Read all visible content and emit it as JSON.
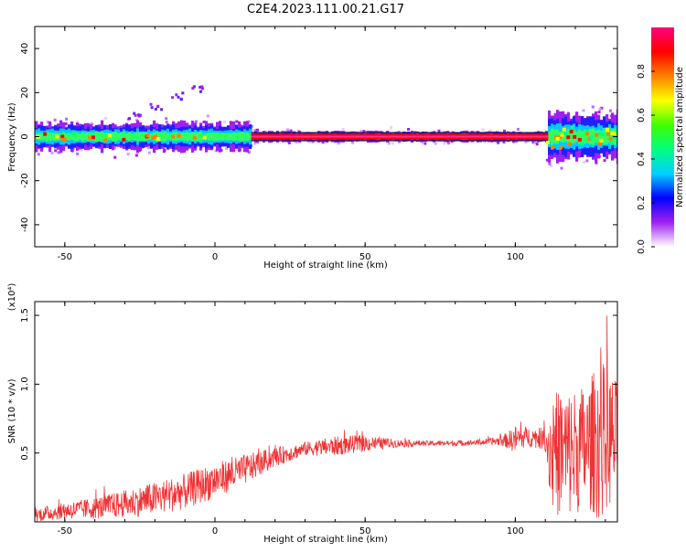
{
  "title": "C2E4.2023.111.00.21.G17",
  "chart_data": [
    {
      "type": "heatmap",
      "xlabel": "Height of straight line (km)",
      "ylabel": "Frequency (Hz)",
      "xlim": [
        -60,
        134
      ],
      "ylim": [
        -50,
        50
      ],
      "xticks": [
        -50,
        0,
        50,
        100
      ],
      "yticks": [
        -40,
        -20,
        0,
        20,
        40
      ],
      "colorbar": {
        "label": "Normalized spectral amplitude",
        "range": [
          0.0,
          1.0
        ],
        "ticks": [
          "0.0",
          "0.2",
          "0.4",
          "0.6",
          "0.8"
        ],
        "colors": [
          "#ffffff",
          "#a020f0",
          "#0000ff",
          "#00d0ff",
          "#00ff80",
          "#40ff00",
          "#ffff00",
          "#ff8000",
          "#ff0000",
          "#ff0080"
        ]
      },
      "features": {
        "main_band_center_hz": 0,
        "main_band_halfwidth_hz": 2,
        "saturated_segment_km": [
          12,
          111
        ],
        "noisy_left_halfwidth_hz": 6,
        "noisy_right_segment_km": [
          110,
          134
        ],
        "noisy_right_halfwidth_hz": 10,
        "rising_feature": [
          [
            -27,
            10
          ],
          [
            -20,
            14
          ],
          [
            -13,
            19
          ],
          [
            -6,
            22
          ]
        ]
      }
    },
    {
      "type": "line",
      "xlabel": "Height of straight line (km)",
      "ylabel": "SNR (10 * v/v)",
      "yscale_label": "(x10⁴)",
      "xlim": [
        -60,
        134
      ],
      "ylim": [
        0,
        1.6
      ],
      "xticks": [
        -50,
        0,
        50,
        100
      ],
      "yticks": [
        "0.5",
        "1.0",
        "1.5"
      ],
      "series": [
        {
          "color": "#ee3333",
          "x": [
            -60,
            -50,
            -40,
            -30,
            -20,
            -10,
            0,
            10,
            20,
            30,
            40,
            50,
            60,
            70,
            80,
            90,
            96,
            100,
            104,
            110,
            112,
            118,
            124,
            128,
            134
          ],
          "mean": [
            0.05,
            0.08,
            0.1,
            0.13,
            0.17,
            0.22,
            0.3,
            0.38,
            0.47,
            0.53,
            0.55,
            0.57,
            0.57,
            0.57,
            0.57,
            0.58,
            0.59,
            0.6,
            0.62,
            0.6,
            0.5,
            0.5,
            0.55,
            0.6,
            0.6
          ],
          "spread": [
            0.05,
            0.06,
            0.08,
            0.1,
            0.12,
            0.13,
            0.13,
            0.11,
            0.07,
            0.05,
            0.07,
            0.06,
            0.03,
            0.02,
            0.02,
            0.02,
            0.04,
            0.1,
            0.07,
            0.08,
            0.45,
            0.48,
            0.45,
            0.6,
            0.42
          ]
        }
      ]
    }
  ]
}
